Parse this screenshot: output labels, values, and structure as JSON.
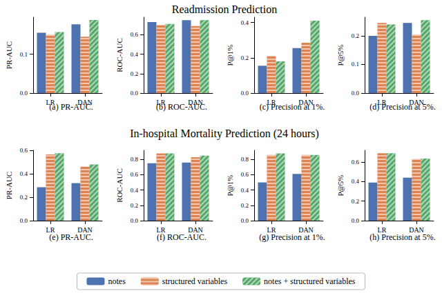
{
  "chart_data": [
    {
      "type": "bar",
      "annotations": [
        "Readmission Prediction"
      ],
      "title": "(a) PR-AUC.",
      "y_label": "PR-AUC",
      "categories": [
        "LR",
        "DAN"
      ],
      "series": [
        {
          "name": "notes",
          "color": "#4c72b0",
          "values": [
            0.155,
            0.177
          ]
        },
        {
          "name": "structured variables",
          "color": "#dd8452",
          "values": [
            0.15,
            0.145
          ]
        },
        {
          "name": "notes + structured variables",
          "color": "#55a868",
          "values": [
            0.157,
            0.188
          ]
        }
      ],
      "ylim": [
        0,
        0.195
      ],
      "yticks": [
        {
          "value": 0,
          "label": "0.0"
        },
        0.1
      ],
      "grid": false,
      "legend": "bottom"
    },
    {
      "type": "bar",
      "title": "(b) ROC-AUC.",
      "y_label": "ROC-AUC",
      "categories": [
        "LR",
        "DAN"
      ],
      "series": [
        {
          "name": "notes",
          "color": "#4c72b0",
          "values": [
            0.73,
            0.75
          ]
        },
        {
          "name": "structured variables",
          "color": "#dd8452",
          "values": [
            0.7,
            0.69
          ]
        },
        {
          "name": "notes + structured variables",
          "color": "#55a868",
          "values": [
            0.71,
            0.75
          ]
        }
      ],
      "ylim": [
        0,
        0.78
      ],
      "yticks": [
        {
          "value": 0,
          "label": "0.0"
        },
        0.2,
        0.4,
        0.6
      ],
      "grid": false,
      "legend": "bottom"
    },
    {
      "type": "bar",
      "title": "(c) Precision at 1%.",
      "y_label": "P@1%",
      "categories": [
        "LR",
        "DAN"
      ],
      "series": [
        {
          "name": "notes",
          "color": "#4c72b0",
          "values": [
            0.155,
            0.255
          ]
        },
        {
          "name": "structured variables",
          "color": "#dd8452",
          "values": [
            0.21,
            0.285
          ]
        },
        {
          "name": "notes + structured variables",
          "color": "#55a868",
          "values": [
            0.18,
            0.41
          ]
        }
      ],
      "ylim": [
        0,
        0.43
      ],
      "yticks": [
        {
          "value": 0,
          "label": "0.0"
        },
        0.2,
        0.4
      ],
      "grid": false,
      "legend": "bottom"
    },
    {
      "type": "bar",
      "title": "(d) Precision at 5%.",
      "y_label": "P@5%",
      "categories": [
        "LR",
        "DAN"
      ],
      "series": [
        {
          "name": "notes",
          "color": "#4c72b0",
          "values": [
            0.2,
            0.245
          ]
        },
        {
          "name": "structured variables",
          "color": "#dd8452",
          "values": [
            0.245,
            0.205
          ]
        },
        {
          "name": "notes + structured variables",
          "color": "#55a868",
          "values": [
            0.24,
            0.255
          ]
        }
      ],
      "ylim": [
        0,
        0.265
      ],
      "yticks": [
        {
          "value": 0,
          "label": "0.0"
        },
        0.1,
        0.2
      ],
      "grid": false,
      "legend": "bottom"
    },
    {
      "type": "bar",
      "annotations": [
        "In-hospital Mortality Prediction (24 hours)"
      ],
      "title": "(e) PR-AUC.",
      "y_label": "PR-AUC",
      "categories": [
        "LR",
        "DAN"
      ],
      "series": [
        {
          "name": "notes",
          "color": "#4c72b0",
          "values": [
            0.285,
            0.32
          ]
        },
        {
          "name": "structured variables",
          "color": "#dd8452",
          "values": [
            0.565,
            0.46
          ]
        },
        {
          "name": "notes + structured variables",
          "color": "#55a868",
          "values": [
            0.575,
            0.48
          ]
        }
      ],
      "ylim": [
        0,
        0.6
      ],
      "yticks": [
        {
          "value": 0,
          "label": "0.0"
        },
        0.2,
        0.4,
        0.6
      ],
      "grid": false,
      "legend": "bottom"
    },
    {
      "type": "bar",
      "title": "(f) ROC-AUC.",
      "y_label": "ROC-AUC",
      "categories": [
        "LR",
        "DAN"
      ],
      "series": [
        {
          "name": "notes",
          "color": "#4c72b0",
          "values": [
            0.75,
            0.76
          ]
        },
        {
          "name": "structured variables",
          "color": "#dd8452",
          "values": [
            0.88,
            0.83
          ]
        },
        {
          "name": "notes + structured variables",
          "color": "#55a868",
          "values": [
            0.88,
            0.85
          ]
        }
      ],
      "ylim": [
        0,
        0.92
      ],
      "yticks": [
        {
          "value": 0,
          "label": "0.0"
        },
        0.2,
        0.4,
        0.6,
        0.8
      ],
      "grid": false,
      "legend": "bottom"
    },
    {
      "type": "bar",
      "title": "(g) Precision at 1%.",
      "y_label": "P@1%",
      "categories": [
        "LR",
        "DAN"
      ],
      "series": [
        {
          "name": "notes",
          "color": "#4c72b0",
          "values": [
            0.5,
            0.61
          ]
        },
        {
          "name": "structured variables",
          "color": "#dd8452",
          "values": [
            0.86,
            0.86
          ]
        },
        {
          "name": "notes + structured variables",
          "color": "#55a868",
          "values": [
            0.88,
            0.86
          ]
        }
      ],
      "ylim": [
        0,
        0.92
      ],
      "yticks": [
        {
          "value": 0,
          "label": "0.0"
        },
        0.2,
        0.4,
        0.6,
        0.8
      ],
      "grid": false,
      "legend": "bottom"
    },
    {
      "type": "bar",
      "title": "(h) Precision at 5%.",
      "y_label": "P@5%",
      "categories": [
        "LR",
        "DAN"
      ],
      "series": [
        {
          "name": "notes",
          "color": "#4c72b0",
          "values": [
            0.39,
            0.44
          ]
        },
        {
          "name": "structured variables",
          "color": "#dd8452",
          "values": [
            0.69,
            0.63
          ]
        },
        {
          "name": "notes + structured variables",
          "color": "#55a868",
          "values": [
            0.69,
            0.635
          ]
        }
      ],
      "ylim": [
        0,
        0.72
      ],
      "yticks": [
        {
          "value": 0,
          "label": "0.0"
        },
        0.2,
        0.4,
        0.6
      ],
      "grid": false,
      "legend": "bottom"
    }
  ]
}
